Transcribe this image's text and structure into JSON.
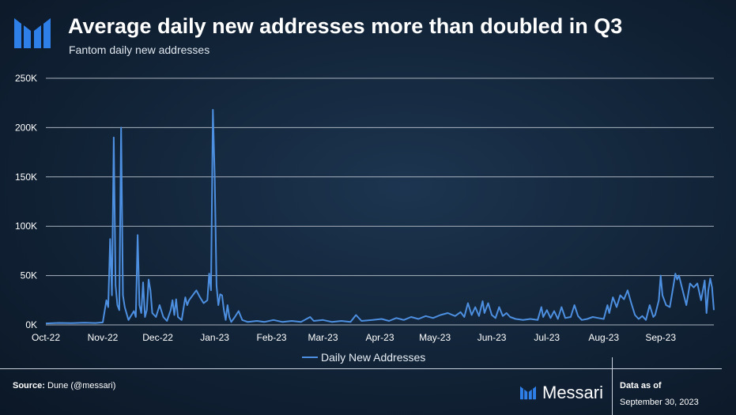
{
  "header": {
    "title": "Average daily new addresses more than doubled in Q3",
    "subtitle": "Fantom daily new addresses",
    "logo_icon": "messari-logo-icon"
  },
  "footer": {
    "source_label": "Source:",
    "source_value": "Dune (@messari)",
    "brand_name": "Messari",
    "data_as_of_label": "Data as of",
    "data_as_of_date": "September 30, 2023"
  },
  "colors": {
    "line": "#4d8fe0",
    "grid": "#c4ccd6",
    "accent": "#2f7fe8"
  },
  "chart_data": {
    "type": "line",
    "title": "Average daily new addresses more than doubled in Q3",
    "subtitle": "Fantom daily new addresses",
    "xlabel": "",
    "ylabel": "",
    "ylim": [
      0,
      250000
    ],
    "yticks": [
      0,
      50000,
      100000,
      150000,
      200000,
      250000
    ],
    "ytick_labels": [
      "0K",
      "50K",
      "100K",
      "150K",
      "200K",
      "250K"
    ],
    "xtick_labels": [
      "Oct-22",
      "Nov-22",
      "Dec-22",
      "Jan-23",
      "Feb-23",
      "Mar-23",
      "Apr-23",
      "May-23",
      "Jun-23",
      "Jul-23",
      "Aug-23",
      "Sep-23"
    ],
    "xtick_dates": [
      "2022-10-01",
      "2022-11-01",
      "2022-12-01",
      "2023-01-01",
      "2023-02-01",
      "2023-03-01",
      "2023-04-01",
      "2023-05-01",
      "2023-06-01",
      "2023-07-01",
      "2023-08-01",
      "2023-09-01"
    ],
    "x_range": [
      "2022-10-01",
      "2023-09-30"
    ],
    "grid": "horizontal",
    "legend": "bottom-center",
    "series": [
      {
        "name": "Daily New Addresses",
        "points": [
          [
            "2022-10-01",
            1500
          ],
          [
            "2022-10-08",
            2000
          ],
          [
            "2022-10-15",
            1800
          ],
          [
            "2022-10-22",
            2200
          ],
          [
            "2022-10-28",
            1900
          ],
          [
            "2022-11-01",
            2500
          ],
          [
            "2022-11-03",
            25000
          ],
          [
            "2022-11-04",
            18000
          ],
          [
            "2022-11-05",
            87000
          ],
          [
            "2022-11-06",
            30000
          ],
          [
            "2022-11-07",
            190000
          ],
          [
            "2022-11-08",
            40000
          ],
          [
            "2022-11-09",
            20000
          ],
          [
            "2022-11-10",
            15000
          ],
          [
            "2022-11-11",
            200000
          ],
          [
            "2022-11-12",
            30000
          ],
          [
            "2022-11-13",
            18000
          ],
          [
            "2022-11-15",
            5000
          ],
          [
            "2022-11-18",
            14000
          ],
          [
            "2022-11-19",
            8000
          ],
          [
            "2022-11-20",
            91000
          ],
          [
            "2022-11-21",
            20000
          ],
          [
            "2022-11-22",
            12000
          ],
          [
            "2022-11-23",
            43000
          ],
          [
            "2022-11-24",
            8000
          ],
          [
            "2022-11-25",
            15000
          ],
          [
            "2022-11-26",
            46000
          ],
          [
            "2022-11-27",
            35000
          ],
          [
            "2022-11-28",
            12000
          ],
          [
            "2022-11-30",
            8000
          ],
          [
            "2022-12-02",
            20000
          ],
          [
            "2022-12-04",
            8000
          ],
          [
            "2022-12-06",
            4000
          ],
          [
            "2022-12-08",
            15000
          ],
          [
            "2022-12-09",
            25000
          ],
          [
            "2022-12-10",
            10000
          ],
          [
            "2022-12-11",
            26000
          ],
          [
            "2022-12-12",
            8000
          ],
          [
            "2022-12-14",
            5000
          ],
          [
            "2022-12-16",
            28000
          ],
          [
            "2022-12-17",
            20000
          ],
          [
            "2022-12-18",
            25000
          ],
          [
            "2022-12-20",
            30000
          ],
          [
            "2022-12-22",
            35000
          ],
          [
            "2022-12-24",
            28000
          ],
          [
            "2022-12-26",
            22000
          ],
          [
            "2022-12-28",
            25000
          ],
          [
            "2022-12-29",
            52000
          ],
          [
            "2022-12-30",
            35000
          ],
          [
            "2022-12-31",
            218000
          ],
          [
            "2023-01-01",
            150000
          ],
          [
            "2023-01-02",
            40000
          ],
          [
            "2023-01-03",
            20000
          ],
          [
            "2023-01-04",
            31000
          ],
          [
            "2023-01-05",
            30000
          ],
          [
            "2023-01-06",
            15000
          ],
          [
            "2023-01-07",
            5000
          ],
          [
            "2023-01-08",
            20000
          ],
          [
            "2023-01-09",
            8000
          ],
          [
            "2023-01-10",
            3000
          ],
          [
            "2023-01-12",
            8000
          ],
          [
            "2023-01-14",
            14000
          ],
          [
            "2023-01-16",
            5000
          ],
          [
            "2023-01-19",
            3000
          ],
          [
            "2023-01-24",
            4000
          ],
          [
            "2023-01-28",
            3000
          ],
          [
            "2023-02-02",
            5000
          ],
          [
            "2023-02-07",
            3000
          ],
          [
            "2023-02-12",
            4000
          ],
          [
            "2023-02-17",
            3000
          ],
          [
            "2023-02-22",
            8000
          ],
          [
            "2023-02-24",
            4000
          ],
          [
            "2023-03-01",
            5000
          ],
          [
            "2023-03-06",
            3000
          ],
          [
            "2023-03-11",
            4000
          ],
          [
            "2023-03-16",
            3000
          ],
          [
            "2023-03-19",
            10000
          ],
          [
            "2023-03-22",
            4000
          ],
          [
            "2023-03-28",
            5000
          ],
          [
            "2023-04-02",
            6000
          ],
          [
            "2023-04-06",
            4000
          ],
          [
            "2023-04-10",
            7000
          ],
          [
            "2023-04-14",
            5000
          ],
          [
            "2023-04-18",
            8000
          ],
          [
            "2023-04-22",
            6000
          ],
          [
            "2023-04-26",
            9000
          ],
          [
            "2023-04-30",
            7000
          ],
          [
            "2023-05-04",
            10000
          ],
          [
            "2023-05-08",
            12000
          ],
          [
            "2023-05-12",
            9000
          ],
          [
            "2023-05-15",
            13000
          ],
          [
            "2023-05-17",
            8000
          ],
          [
            "2023-05-19",
            22000
          ],
          [
            "2023-05-21",
            10000
          ],
          [
            "2023-05-23",
            18000
          ],
          [
            "2023-05-25",
            9000
          ],
          [
            "2023-05-27",
            24000
          ],
          [
            "2023-05-28",
            12000
          ],
          [
            "2023-05-30",
            22000
          ],
          [
            "2023-06-01",
            10000
          ],
          [
            "2023-06-03",
            7000
          ],
          [
            "2023-06-05",
            18000
          ],
          [
            "2023-06-07",
            9000
          ],
          [
            "2023-06-09",
            12000
          ],
          [
            "2023-06-11",
            8000
          ],
          [
            "2023-06-14",
            6000
          ],
          [
            "2023-06-18",
            5000
          ],
          [
            "2023-06-22",
            6000
          ],
          [
            "2023-06-26",
            5000
          ],
          [
            "2023-06-28",
            18000
          ],
          [
            "2023-06-29",
            8000
          ],
          [
            "2023-07-01",
            15000
          ],
          [
            "2023-07-03",
            7000
          ],
          [
            "2023-07-05",
            14000
          ],
          [
            "2023-07-07",
            6000
          ],
          [
            "2023-07-09",
            18000
          ],
          [
            "2023-07-11",
            7000
          ],
          [
            "2023-07-14",
            8000
          ],
          [
            "2023-07-16",
            20000
          ],
          [
            "2023-07-18",
            9000
          ],
          [
            "2023-07-20",
            5000
          ],
          [
            "2023-07-23",
            6000
          ],
          [
            "2023-07-26",
            8000
          ],
          [
            "2023-07-29",
            7000
          ],
          [
            "2023-08-01",
            6000
          ],
          [
            "2023-08-03",
            20000
          ],
          [
            "2023-08-04",
            12000
          ],
          [
            "2023-08-06",
            28000
          ],
          [
            "2023-08-08",
            18000
          ],
          [
            "2023-08-10",
            30000
          ],
          [
            "2023-08-12",
            26000
          ],
          [
            "2023-08-14",
            35000
          ],
          [
            "2023-08-16",
            22000
          ],
          [
            "2023-08-18",
            10000
          ],
          [
            "2023-08-20",
            6000
          ],
          [
            "2023-08-22",
            9000
          ],
          [
            "2023-08-24",
            5000
          ],
          [
            "2023-08-26",
            20000
          ],
          [
            "2023-08-28",
            8000
          ],
          [
            "2023-08-29",
            10000
          ],
          [
            "2023-08-31",
            25000
          ],
          [
            "2023-09-01",
            50000
          ],
          [
            "2023-09-02",
            30000
          ],
          [
            "2023-09-04",
            20000
          ],
          [
            "2023-09-06",
            18000
          ],
          [
            "2023-09-08",
            40000
          ],
          [
            "2023-09-09",
            52000
          ],
          [
            "2023-09-10",
            46000
          ],
          [
            "2023-09-11",
            50000
          ],
          [
            "2023-09-13",
            35000
          ],
          [
            "2023-09-15",
            20000
          ],
          [
            "2023-09-17",
            42000
          ],
          [
            "2023-09-19",
            38000
          ],
          [
            "2023-09-21",
            42000
          ],
          [
            "2023-09-23",
            25000
          ],
          [
            "2023-09-25",
            45000
          ],
          [
            "2023-09-26",
            12000
          ],
          [
            "2023-09-27",
            35000
          ],
          [
            "2023-09-28",
            47000
          ],
          [
            "2023-09-29",
            38000
          ],
          [
            "2023-09-30",
            15000
          ]
        ]
      }
    ]
  }
}
